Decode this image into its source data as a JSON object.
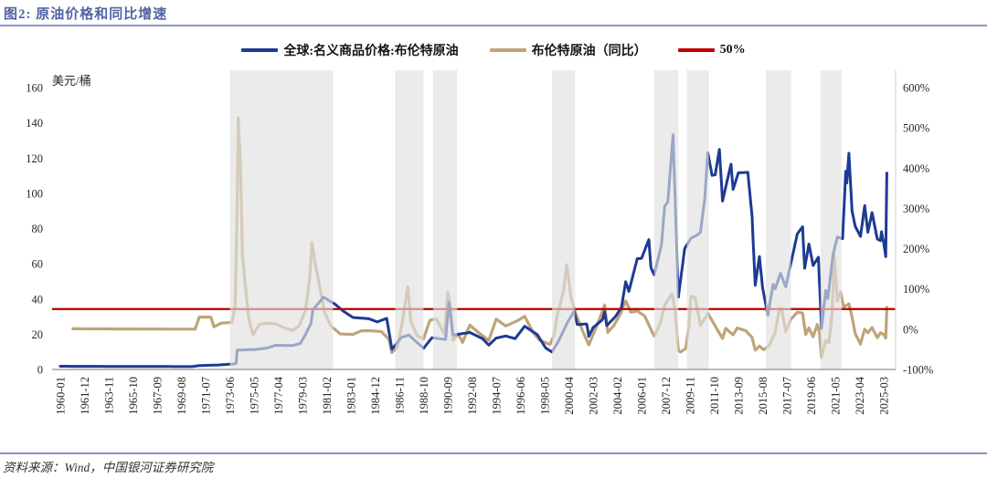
{
  "title": "图2:  原油价格和同比增速",
  "accent_colors": {
    "title_blue": "#4f63a2",
    "rule_blue": "#8794bd",
    "price_navy": "#1d3a94",
    "yoy_tan": "#bfa478",
    "threshold_red": "#c00000",
    "band_gray": "#ebebeb"
  },
  "legend": [
    {
      "label": "全球:名义商品价格:布伦特原油",
      "color": "#1d3a94"
    },
    {
      "label": "布伦特原油（同比）",
      "color": "#bfa478"
    },
    {
      "label": "50%",
      "color": "#c00000"
    }
  ],
  "left_axis": {
    "title": "美元/桶",
    "min": 0,
    "max": 160,
    "ticks": [
      0,
      20,
      40,
      60,
      80,
      100,
      120,
      140,
      160
    ]
  },
  "right_axis": {
    "min": -100,
    "max": 600,
    "ticks": [
      600,
      500,
      400,
      300,
      200,
      100,
      0,
      -100
    ],
    "suffix": "%"
  },
  "x_axis": {
    "labels": [
      "1960-01",
      "1961-12",
      "1963-11",
      "1965-10",
      "1967-09",
      "1969-08",
      "1971-07",
      "1973-06",
      "1975-05",
      "1977-04",
      "1979-03",
      "1981-02",
      "1983-01",
      "1984-12",
      "1986-11",
      "1988-10",
      "1990-09",
      "1992-08",
      "1994-07",
      "1996-06",
      "1998-05",
      "2000-04",
      "2002-03",
      "2004-02",
      "2006-01",
      "2007-12",
      "2009-11",
      "2011-10",
      "2013-09",
      "2015-08",
      "2017-07",
      "2019-06",
      "2021-05",
      "2023-04",
      "2025-03"
    ]
  },
  "source": "资料来源：Wind，中国银河证券研究院",
  "chart_data": {
    "type": "line",
    "title": "原油价格和同比增速",
    "x_unit": "month",
    "x_range": [
      "1960-01",
      "2025-06"
    ],
    "interpolation": "monthly-linear",
    "legend_position": "top-center",
    "grid": false,
    "series": [
      {
        "name": "全球:名义商品价格:布伦特原油",
        "axis": "left",
        "unit": "美元/桶",
        "color": "#1d3a94",
        "keypoints": [
          [
            "1960-01",
            1.8
          ],
          [
            "1970-06",
            1.6
          ],
          [
            "1971-01",
            2.2
          ],
          [
            "1972-06",
            2.5
          ],
          [
            "1973-09",
            3.1
          ],
          [
            "1973-12",
            3.4
          ],
          [
            "1974-01",
            11.0
          ],
          [
            "1975-06",
            11.3
          ],
          [
            "1976-06",
            12.2
          ],
          [
            "1977-01",
            13.7
          ],
          [
            "1978-06",
            13.6
          ],
          [
            "1979-01",
            14.8
          ],
          [
            "1979-06",
            20.0
          ],
          [
            "1979-11",
            26.0
          ],
          [
            "1980-01",
            34.0
          ],
          [
            "1980-11",
            41.0
          ],
          [
            "1981-10",
            37.0
          ],
          [
            "1982-06",
            33.0
          ],
          [
            "1983-03",
            29.5
          ],
          [
            "1984-06",
            28.8
          ],
          [
            "1985-02",
            27.0
          ],
          [
            "1985-11",
            29.0
          ],
          [
            "1986-04",
            11.5
          ],
          [
            "1986-08",
            14.5
          ],
          [
            "1987-01",
            18.2
          ],
          [
            "1987-08",
            19.5
          ],
          [
            "1988-10",
            12.0
          ],
          [
            "1989-06",
            18.0
          ],
          [
            "1990-07",
            17.0
          ],
          [
            "1990-10",
            38.0
          ],
          [
            "1991-02",
            19.5
          ],
          [
            "1992-06",
            21.0
          ],
          [
            "1993-06",
            17.5
          ],
          [
            "1993-12",
            13.8
          ],
          [
            "1994-07",
            17.8
          ],
          [
            "1995-04",
            19.0
          ],
          [
            "1996-01",
            17.5
          ],
          [
            "1996-10",
            24.5
          ],
          [
            "1997-10",
            19.8
          ],
          [
            "1998-06",
            12.2
          ],
          [
            "1998-12",
            9.9
          ],
          [
            "1999-06",
            15.9
          ],
          [
            "2000-03",
            27.0
          ],
          [
            "2000-09",
            33.0
          ],
          [
            "2000-12",
            25.5
          ],
          [
            "2001-09",
            25.8
          ],
          [
            "2001-11",
            18.8
          ],
          [
            "2002-03",
            23.7
          ],
          [
            "2002-12",
            28.3
          ],
          [
            "2003-02",
            32.7
          ],
          [
            "2003-04",
            24.9
          ],
          [
            "2003-12",
            29.8
          ],
          [
            "2004-06",
            35.2
          ],
          [
            "2004-10",
            49.8
          ],
          [
            "2005-01",
            44.3
          ],
          [
            "2005-09",
            62.9
          ],
          [
            "2006-01",
            63.0
          ],
          [
            "2006-08",
            73.7
          ],
          [
            "2006-10",
            57.8
          ],
          [
            "2007-01",
            53.7
          ],
          [
            "2007-08",
            70.8
          ],
          [
            "2007-11",
            92.6
          ],
          [
            "2008-02",
            95.0
          ],
          [
            "2008-07",
            133.2
          ],
          [
            "2008-12",
            41.0
          ],
          [
            "2009-06",
            68.6
          ],
          [
            "2009-12",
            74.5
          ],
          [
            "2010-05",
            76.0
          ],
          [
            "2010-09",
            77.8
          ],
          [
            "2011-01",
            96.5
          ],
          [
            "2011-04",
            123.1
          ],
          [
            "2011-08",
            110.2
          ],
          [
            "2011-11",
            110.5
          ],
          [
            "2012-03",
            124.9
          ],
          [
            "2012-06",
            95.6
          ],
          [
            "2013-02",
            116.5
          ],
          [
            "2013-04",
            102.2
          ],
          [
            "2013-09",
            111.6
          ],
          [
            "2014-06",
            111.9
          ],
          [
            "2014-10",
            87.3
          ],
          [
            "2015-01",
            47.8
          ],
          [
            "2015-05",
            64.1
          ],
          [
            "2015-08",
            46.5
          ],
          [
            "2016-01",
            30.7
          ],
          [
            "2016-06",
            48.3
          ],
          [
            "2016-08",
            45.8
          ],
          [
            "2017-01",
            54.6
          ],
          [
            "2017-06",
            46.9
          ],
          [
            "2018-05",
            76.9
          ],
          [
            "2018-10",
            81.0
          ],
          [
            "2018-12",
            57.4
          ],
          [
            "2019-04",
            71.2
          ],
          [
            "2019-08",
            59.0
          ],
          [
            "2020-01",
            63.7
          ],
          [
            "2020-04",
            23.3
          ],
          [
            "2020-08",
            44.8
          ],
          [
            "2020-10",
            40.2
          ],
          [
            "2021-03",
            65.4
          ],
          [
            "2021-07",
            75.2
          ],
          [
            "2021-12",
            74.2
          ],
          [
            "2022-03",
            112.5
          ],
          [
            "2022-04",
            105.9
          ],
          [
            "2022-06",
            122.7
          ],
          [
            "2022-09",
            90.0
          ],
          [
            "2022-12",
            81.3
          ],
          [
            "2023-05",
            75.5
          ],
          [
            "2023-09",
            93.0
          ],
          [
            "2023-12",
            77.9
          ],
          [
            "2024-04",
            89.0
          ],
          [
            "2024-09",
            74.0
          ],
          [
            "2024-12",
            73.1
          ],
          [
            "2025-01",
            78.2
          ],
          [
            "2025-03",
            72.0
          ],
          [
            "2025-05",
            64.0
          ],
          [
            "2025-06",
            111.5
          ]
        ]
      },
      {
        "name": "布伦特原油（同比）",
        "axis": "right",
        "unit": "%",
        "color": "#bfa478",
        "keypoints": [
          [
            "1961-01",
            1
          ],
          [
            "1970-09",
            0
          ],
          [
            "1971-01",
            30
          ],
          [
            "1971-12",
            30
          ],
          [
            "1972-03",
            6
          ],
          [
            "1972-10",
            15
          ],
          [
            "1973-08",
            17
          ],
          [
            "1973-11",
            55
          ],
          [
            "1974-01",
            290
          ],
          [
            "1974-02",
            525
          ],
          [
            "1974-04",
            420
          ],
          [
            "1974-06",
            180
          ],
          [
            "1974-12",
            25
          ],
          [
            "1975-04",
            -14
          ],
          [
            "1975-10",
            12
          ],
          [
            "1976-06",
            15
          ],
          [
            "1977-02",
            13
          ],
          [
            "1977-10",
            3
          ],
          [
            "1978-06",
            -3
          ],
          [
            "1978-12",
            9
          ],
          [
            "1979-06",
            48
          ],
          [
            "1979-10",
            130
          ],
          [
            "1979-12",
            215
          ],
          [
            "1980-03",
            165
          ],
          [
            "1980-07",
            110
          ],
          [
            "1980-12",
            42
          ],
          [
            "1981-06",
            8
          ],
          [
            "1982-03",
            -12
          ],
          [
            "1983-03",
            -13
          ],
          [
            "1983-11",
            -4
          ],
          [
            "1984-08",
            -4
          ],
          [
            "1985-06",
            -6
          ],
          [
            "1986-01",
            -25
          ],
          [
            "1986-04",
            -58
          ],
          [
            "1986-09",
            -45
          ],
          [
            "1987-02",
            20
          ],
          [
            "1987-07",
            105
          ],
          [
            "1987-10",
            18
          ],
          [
            "1988-04",
            -17
          ],
          [
            "1988-10",
            -24
          ],
          [
            "1989-04",
            22
          ],
          [
            "1989-10",
            26
          ],
          [
            "1990-06",
            -13
          ],
          [
            "1990-09",
            92
          ],
          [
            "1990-12",
            50
          ],
          [
            "1991-02",
            -28
          ],
          [
            "1991-07",
            -12
          ],
          [
            "1991-11",
            -33
          ],
          [
            "1992-06",
            10
          ],
          [
            "1993-02",
            -8
          ],
          [
            "1993-12",
            -28
          ],
          [
            "1994-07",
            25
          ],
          [
            "1995-04",
            8
          ],
          [
            "1996-04",
            22
          ],
          [
            "1996-10",
            32
          ],
          [
            "1997-06",
            -8
          ],
          [
            "1997-12",
            -27
          ],
          [
            "1998-10",
            -38
          ],
          [
            "1999-02",
            -15
          ],
          [
            "1999-05",
            35
          ],
          [
            "1999-11",
            95
          ],
          [
            "2000-02",
            160
          ],
          [
            "2000-06",
            80
          ],
          [
            "2000-11",
            35
          ],
          [
            "2001-06",
            -10
          ],
          [
            "2001-11",
            -39
          ],
          [
            "2002-06",
            5
          ],
          [
            "2002-12",
            45
          ],
          [
            "2003-02",
            60
          ],
          [
            "2003-05",
            -8
          ],
          [
            "2003-11",
            10
          ],
          [
            "2004-05",
            38
          ],
          [
            "2004-10",
            70
          ],
          [
            "2005-03",
            42
          ],
          [
            "2005-09",
            45
          ],
          [
            "2006-04",
            33
          ],
          [
            "2006-09",
            5
          ],
          [
            "2007-01",
            -17
          ],
          [
            "2007-07",
            15
          ],
          [
            "2007-11",
            60
          ],
          [
            "2008-06",
            88
          ],
          [
            "2008-09",
            45
          ],
          [
            "2008-12",
            -52
          ],
          [
            "2009-02",
            -57
          ],
          [
            "2009-07",
            -48
          ],
          [
            "2009-10",
            8
          ],
          [
            "2009-12",
            82
          ],
          [
            "2010-04",
            78
          ],
          [
            "2010-09",
            10
          ],
          [
            "2011-02",
            30
          ],
          [
            "2011-04",
            40
          ],
          [
            "2011-12",
            3
          ],
          [
            "2012-06",
            -23
          ],
          [
            "2012-09",
            2
          ],
          [
            "2013-04",
            -14
          ],
          [
            "2013-08",
            3
          ],
          [
            "2014-04",
            -4
          ],
          [
            "2014-10",
            -20
          ],
          [
            "2015-01",
            -52
          ],
          [
            "2015-05",
            -42
          ],
          [
            "2015-09",
            -51
          ],
          [
            "2016-02",
            -42
          ],
          [
            "2016-08",
            -8
          ],
          [
            "2016-12",
            50
          ],
          [
            "2017-02",
            52
          ],
          [
            "2017-06",
            -6
          ],
          [
            "2017-11",
            25
          ],
          [
            "2018-05",
            42
          ],
          [
            "2018-10",
            40
          ],
          [
            "2019-01",
            -13
          ],
          [
            "2019-04",
            3
          ],
          [
            "2019-08",
            -19
          ],
          [
            "2019-12",
            12
          ],
          [
            "2020-02",
            -8
          ],
          [
            "2020-04",
            -70
          ],
          [
            "2020-08",
            -28
          ],
          [
            "2020-11",
            -33
          ],
          [
            "2021-02",
            35
          ],
          [
            "2021-04",
            185
          ],
          [
            "2021-07",
            70
          ],
          [
            "2021-10",
            93
          ],
          [
            "2022-01",
            55
          ],
          [
            "2022-06",
            63
          ],
          [
            "2022-09",
            31
          ],
          [
            "2022-12",
            -11
          ],
          [
            "2023-05",
            -37
          ],
          [
            "2023-09",
            0
          ],
          [
            "2023-12",
            -9
          ],
          [
            "2024-04",
            4
          ],
          [
            "2024-09",
            -21
          ],
          [
            "2024-12",
            -9
          ],
          [
            "2025-03",
            -13
          ],
          [
            "2025-05",
            -22
          ],
          [
            "2025-06",
            54
          ]
        ]
      }
    ],
    "threshold_line": {
      "label": "50%",
      "axis": "right",
      "value": 50,
      "color": "#c00000"
    },
    "shaded_bands": {
      "fill": "rgba(225,225,225,0.65)",
      "ranges": [
        [
          "1973-06",
          "1981-08"
        ],
        [
          "1986-07",
          "1988-10"
        ],
        [
          "1989-07",
          "1991-06"
        ],
        [
          "1998-12",
          "2000-10"
        ],
        [
          "2007-01",
          "2008-12"
        ],
        [
          "2009-08",
          "2011-05"
        ],
        [
          "2015-11",
          "2017-11"
        ],
        [
          "2020-03",
          "2021-11"
        ]
      ]
    }
  }
}
